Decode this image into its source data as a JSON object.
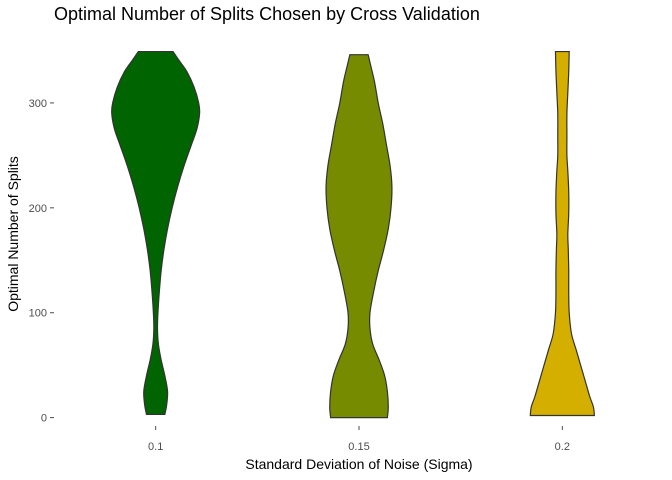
{
  "chart_data": {
    "type": "violin",
    "title": "Optimal Number of Splits Chosen by Cross Validation",
    "xlabel": "Standard Deviation of Noise (Sigma)",
    "ylabel": "Optimal Number of Splits",
    "ylim": [
      -8,
      360
    ],
    "yticks": [
      0,
      100,
      200,
      300
    ],
    "grid": false,
    "legend": "none",
    "categories": [
      "0.1",
      "0.15",
      "0.2"
    ],
    "series": [
      {
        "category": "0.1",
        "color": "#006400",
        "range": [
          3,
          349
        ],
        "density": [
          [
            3,
            0.1
          ],
          [
            12,
            0.12
          ],
          [
            25,
            0.13
          ],
          [
            40,
            0.1
          ],
          [
            55,
            0.06
          ],
          [
            70,
            0.03
          ],
          [
            85,
            0.02
          ],
          [
            100,
            0.025
          ],
          [
            120,
            0.04
          ],
          [
            140,
            0.06
          ],
          [
            160,
            0.09
          ],
          [
            180,
            0.13
          ],
          [
            200,
            0.18
          ],
          [
            220,
            0.24
          ],
          [
            240,
            0.31
          ],
          [
            260,
            0.39
          ],
          [
            275,
            0.45
          ],
          [
            290,
            0.48
          ],
          [
            300,
            0.47
          ],
          [
            315,
            0.42
          ],
          [
            330,
            0.34
          ],
          [
            340,
            0.26
          ],
          [
            349,
            0.19
          ]
        ]
      },
      {
        "category": "0.15",
        "color": "#778B00",
        "range": [
          0,
          346
        ],
        "density": [
          [
            0,
            0.31
          ],
          [
            10,
            0.32
          ],
          [
            25,
            0.31
          ],
          [
            40,
            0.28
          ],
          [
            55,
            0.22
          ],
          [
            70,
            0.15
          ],
          [
            85,
            0.12
          ],
          [
            100,
            0.12
          ],
          [
            120,
            0.16
          ],
          [
            140,
            0.21
          ],
          [
            160,
            0.27
          ],
          [
            180,
            0.32
          ],
          [
            200,
            0.35
          ],
          [
            220,
            0.36
          ],
          [
            240,
            0.34
          ],
          [
            260,
            0.3
          ],
          [
            280,
            0.26
          ],
          [
            300,
            0.21
          ],
          [
            320,
            0.17
          ],
          [
            335,
            0.13
          ],
          [
            346,
            0.1
          ]
        ]
      },
      {
        "category": "0.2",
        "color": "#D4AF00",
        "range": [
          2,
          349
        ],
        "density": [
          [
            2,
            0.35
          ],
          [
            10,
            0.34
          ],
          [
            20,
            0.3
          ],
          [
            35,
            0.25
          ],
          [
            50,
            0.2
          ],
          [
            65,
            0.15
          ],
          [
            80,
            0.1
          ],
          [
            100,
            0.075
          ],
          [
            120,
            0.07
          ],
          [
            140,
            0.07
          ],
          [
            160,
            0.065
          ],
          [
            175,
            0.06
          ],
          [
            195,
            0.07
          ],
          [
            215,
            0.07
          ],
          [
            235,
            0.06
          ],
          [
            250,
            0.05
          ],
          [
            270,
            0.05
          ],
          [
            290,
            0.05
          ],
          [
            310,
            0.06
          ],
          [
            330,
            0.07
          ],
          [
            349,
            0.075
          ]
        ]
      }
    ]
  }
}
